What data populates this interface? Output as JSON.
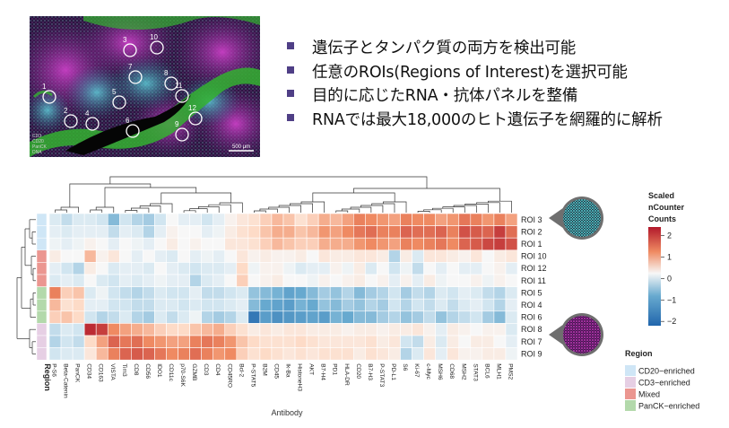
{
  "bullets": [
    "遺伝子とタンパク質の両方を検出可能",
    "任意のROIs(Regions of Interest)を選択可能",
    "目的に応じたRNA・抗体パネルを整備",
    "RNAでは最大18,000のヒト遺伝子を網羅的に解析"
  ],
  "tissue": {
    "roi_labels": [
      "1",
      "2",
      "3",
      "4",
      "5",
      "6",
      "7",
      "8",
      "9",
      "10",
      "11",
      "12"
    ],
    "channels": [
      "CD3",
      "CD20",
      "PanCK",
      "DNA"
    ],
    "scale_label": "500 μm"
  },
  "chart_data": {
    "type": "heatmap",
    "xlabel": "Antibody",
    "row_label": "Region",
    "rows": [
      "ROI 3",
      "ROI 2",
      "ROI 1",
      "ROI 10",
      "ROI 12",
      "ROI 11",
      "ROI 5",
      "ROI 4",
      "ROI 6",
      "ROI 8",
      "ROI 7",
      "ROI 9"
    ],
    "row_regions": [
      "CD20-enriched",
      "CD20-enriched",
      "CD20-enriched",
      "Mixed",
      "Mixed",
      "Mixed",
      "PanCK-enriched",
      "PanCK-enriched",
      "PanCK-enriched",
      "CD3-enriched",
      "CD3-enriched",
      "CD3-enriched"
    ],
    "columns": [
      "P-S6",
      "Beta-Catenin",
      "PanCK",
      "CD34",
      "CD163",
      "VISTA",
      "Tim3",
      "CD8",
      "CD56",
      "IDO1",
      "CD11c",
      "p70-S6K",
      "GZMB",
      "CD3",
      "CD4",
      "CD45RO",
      "Bcl-2",
      "P-STAT5",
      "B2M",
      "CD45",
      "Ik-Ba",
      "HistoneH3",
      "AKT",
      "B7-H4",
      "PD1",
      "HLA-DR",
      "CD20",
      "B7-H3",
      "P-STAT3",
      "PD-L1",
      "S6",
      "Ki-67",
      "c-Myc",
      "MSH6",
      "CD68",
      "MSH2",
      "STAT3",
      "BCL6",
      "MLH1",
      "PMS2"
    ],
    "values": [
      [
        -0.3,
        -0.5,
        -0.3,
        -0.3,
        -0.4,
        -0.9,
        -0.4,
        -0.6,
        -0.7,
        -0.4,
        0.0,
        -0.2,
        -0.2,
        -0.4,
        -0.2,
        0.1,
        0.3,
        0.4,
        0.6,
        0.8,
        0.7,
        0.4,
        0.6,
        0.9,
        0.8,
        1.0,
        1.3,
        1.2,
        1.1,
        1.0,
        1.3,
        1.2,
        1.2,
        1.0,
        1.1,
        1.4,
        1.3,
        1.1,
        1.3,
        1.0
      ],
      [
        -0.2,
        -0.3,
        -0.2,
        -0.2,
        -0.2,
        -0.5,
        -0.2,
        -0.3,
        -0.6,
        -0.2,
        0.1,
        0.0,
        0.0,
        -0.2,
        -0.1,
        0.2,
        0.4,
        0.5,
        0.7,
        0.9,
        0.9,
        0.7,
        0.8,
        1.1,
        1.0,
        1.2,
        1.4,
        1.5,
        1.3,
        1.3,
        1.6,
        1.5,
        1.5,
        1.6,
        1.3,
        1.8,
        1.7,
        1.6,
        2.0,
        1.5
      ],
      [
        -0.1,
        -0.2,
        -0.1,
        0.1,
        0.0,
        -0.2,
        0.0,
        -0.1,
        -0.2,
        0.0,
        0.2,
        0.0,
        0.1,
        0.0,
        0.0,
        0.3,
        0.3,
        0.4,
        0.6,
        0.8,
        0.7,
        0.6,
        0.6,
        0.9,
        0.9,
        0.9,
        1.1,
        1.2,
        1.1,
        1.0,
        1.3,
        1.2,
        1.3,
        1.4,
        1.2,
        1.6,
        1.7,
        1.9,
        2.0,
        1.8
      ],
      [
        0.2,
        0.0,
        0.0,
        0.8,
        0.1,
        0.3,
        0.0,
        -0.2,
        0.0,
        -0.2,
        -0.3,
        0.0,
        -0.2,
        -0.1,
        -0.2,
        0.0,
        0.3,
        0.1,
        0.2,
        0.1,
        0.1,
        0.2,
        0.0,
        0.3,
        0.2,
        0.2,
        0.3,
        0.3,
        0.2,
        -0.6,
        0.2,
        -0.3,
        0.3,
        0.3,
        0.2,
        0.1,
        0.3,
        0.0,
        0.2,
        0.3
      ],
      [
        -0.2,
        -0.4,
        -0.6,
        0.2,
        0.0,
        -0.3,
        -0.2,
        -0.2,
        -0.3,
        0.0,
        -0.2,
        -0.3,
        -0.4,
        -0.3,
        -0.3,
        -0.2,
        0.5,
        -0.1,
        0.1,
        0.1,
        -0.1,
        -0.3,
        -0.2,
        -0.2,
        0.1,
        -0.1,
        0.2,
        -0.3,
        0.0,
        -0.4,
        -0.1,
        -0.5,
        0.0,
        -0.2,
        0.0,
        -0.2,
        -0.2,
        0.0,
        0.1,
        -0.2
      ],
      [
        -0.3,
        -0.2,
        -0.3,
        0.0,
        -0.3,
        -0.4,
        -0.2,
        -0.3,
        -0.2,
        -0.1,
        -0.2,
        -0.2,
        -0.6,
        -0.3,
        -0.2,
        0.0,
        0.6,
        0.0,
        0.1,
        0.2,
        0.0,
        0.0,
        -0.1,
        0.1,
        0.0,
        0.1,
        0.2,
        0.0,
        0.1,
        -0.2,
        0.1,
        -0.2,
        0.2,
        -0.1,
        0.0,
        0.0,
        0.1,
        -0.1,
        0.1,
        0.0
      ],
      [
        1.3,
        0.6,
        0.7,
        -0.3,
        -0.1,
        -0.4,
        -0.5,
        -0.6,
        -0.5,
        -0.3,
        -0.4,
        -0.4,
        -0.2,
        -0.5,
        -0.5,
        -0.4,
        -0.3,
        -0.8,
        -0.9,
        -1.0,
        -1.2,
        -1.1,
        -0.9,
        -0.7,
        -0.8,
        -0.6,
        -0.9,
        -0.7,
        -0.6,
        -0.4,
        -0.7,
        -0.5,
        -0.6,
        -0.3,
        -0.4,
        -0.2,
        -0.3,
        -0.5,
        -0.6,
        -0.3
      ],
      [
        0.8,
        0.4,
        0.5,
        -0.2,
        -0.2,
        -0.4,
        -0.4,
        -0.5,
        -0.5,
        -0.3,
        -0.3,
        -0.4,
        -0.3,
        -0.4,
        -0.4,
        -0.3,
        -0.2,
        -0.9,
        -1.1,
        -1.2,
        -1.3,
        -1.0,
        -1.1,
        -0.8,
        -0.9,
        -0.7,
        -0.8,
        -0.6,
        -0.7,
        -0.4,
        -0.6,
        -0.4,
        -0.5,
        -0.3,
        -0.5,
        -0.3,
        -0.2,
        -0.4,
        -0.6,
        -0.2
      ],
      [
        0.6,
        0.7,
        0.5,
        -0.4,
        -0.6,
        -0.5,
        -0.3,
        -0.6,
        -0.7,
        -0.3,
        -0.5,
        -0.3,
        -0.1,
        -0.6,
        -0.7,
        -0.6,
        -0.3,
        -1.9,
        -1.3,
        -1.5,
        -1.4,
        -1.3,
        -1.2,
        -1.3,
        -1.0,
        -1.1,
        -0.9,
        -0.9,
        -0.7,
        -0.6,
        -0.8,
        -0.7,
        -0.5,
        -0.8,
        -0.6,
        -0.5,
        -0.4,
        -0.7,
        -0.9,
        -0.3
      ],
      [
        -0.5,
        -0.3,
        -0.4,
        2.2,
        2.0,
        1.2,
        1.0,
        0.9,
        0.8,
        0.6,
        0.5,
        0.5,
        0.7,
        0.8,
        0.9,
        0.6,
        0.4,
        0.2,
        0.3,
        0.2,
        0.3,
        0.3,
        0.2,
        0.2,
        0.2,
        0.1,
        0.2,
        0.2,
        0.1,
        0.2,
        0.2,
        0.3,
        0.1,
        -0.2,
        0.2,
        0.1,
        0.0,
        0.1,
        0.1,
        -0.3
      ],
      [
        -0.6,
        -0.4,
        -0.5,
        0.5,
        1.0,
        1.6,
        1.4,
        1.5,
        1.2,
        1.1,
        1.0,
        1.0,
        1.3,
        1.4,
        1.3,
        1.1,
        0.7,
        0.5,
        0.4,
        0.4,
        0.4,
        0.5,
        0.4,
        0.3,
        0.3,
        0.3,
        0.3,
        0.4,
        0.2,
        0.3,
        -0.4,
        -0.5,
        0.2,
        -0.3,
        0.2,
        0.0,
        0.2,
        0.2,
        0.0,
        -0.2
      ],
      [
        -0.4,
        -0.3,
        -0.3,
        0.3,
        0.8,
        1.3,
        1.6,
        1.7,
        1.6,
        1.4,
        1.2,
        1.3,
        1.5,
        1.3,
        1.1,
        1.2,
        0.6,
        0.4,
        0.5,
        0.4,
        0.3,
        0.4,
        0.3,
        0.4,
        0.4,
        0.4,
        0.2,
        0.4,
        0.3,
        0.2,
        -0.6,
        -0.3,
        0.3,
        -0.2,
        0.3,
        0.1,
        0.1,
        0.2,
        0.2,
        -0.1
      ]
    ],
    "legend": {
      "title": "Scaled\nnCounter\nCounts",
      "ticks": [
        2,
        1,
        0,
        -1,
        -2
      ],
      "range": [
        -2.2,
        2.4
      ],
      "colors": [
        "#2166ac",
        "#f7f7f7",
        "#b2182b"
      ]
    },
    "region_legend": {
      "title": "Region",
      "items": [
        {
          "name": "CD20−enriched",
          "color": "#cfe6f6"
        },
        {
          "name": "CD3−enriched",
          "color": "#e6cfe4"
        },
        {
          "name": "Mixed",
          "color": "#eb9690"
        },
        {
          "name": "PanCK−enriched",
          "color": "#b3d9ab"
        }
      ]
    }
  }
}
